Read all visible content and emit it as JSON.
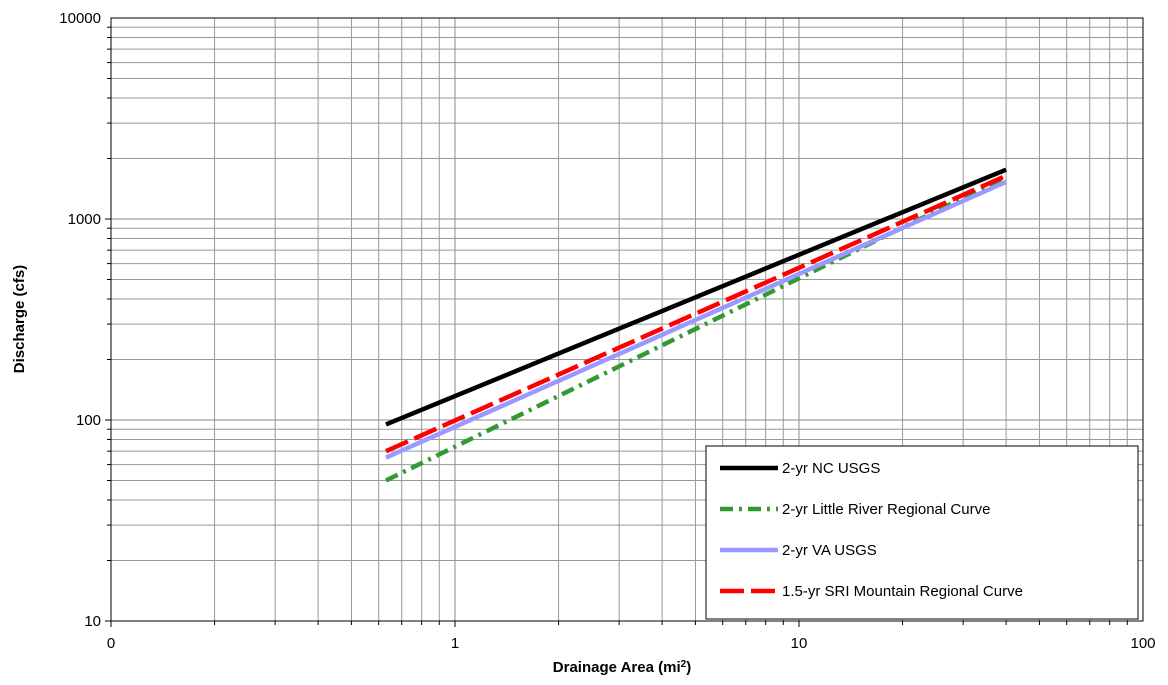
{
  "chart_data": {
    "type": "line",
    "xlabel": "Drainage Area (mi",
    "xlabel_sup": "2",
    "xlabel_suffix": ")",
    "ylabel": "Discharge (cfs)",
    "x_scale": "log",
    "y_scale": "log",
    "xlim": [
      0.1,
      100
    ],
    "ylim": [
      10,
      10000
    ],
    "x_tick_labels": [
      "0",
      "1",
      "10",
      "100"
    ],
    "y_tick_labels": [
      "10",
      "100",
      "1000",
      "10000"
    ],
    "grid": true,
    "legend_position": "bottom-right",
    "series": [
      {
        "name": "2-yr NC USGS",
        "color": "#000000",
        "dash": "solid",
        "x": [
          0.63,
          40
        ],
        "y": [
          95,
          1760
        ]
      },
      {
        "name": "2-yr Little River Regional Curve",
        "color": "#339933",
        "dash": "dash-dot",
        "x": [
          0.63,
          40
        ],
        "y": [
          50,
          1620
        ]
      },
      {
        "name": "2-yr VA USGS",
        "color": "#9999ff",
        "dash": "solid",
        "x": [
          0.63,
          40
        ],
        "y": [
          65,
          1530
        ]
      },
      {
        "name": "1.5-yr SRI Mountain Regional Curve",
        "color": "#ff0000",
        "dash": "long-dash",
        "x": [
          0.63,
          40
        ],
        "y": [
          70,
          1640
        ]
      }
    ]
  }
}
